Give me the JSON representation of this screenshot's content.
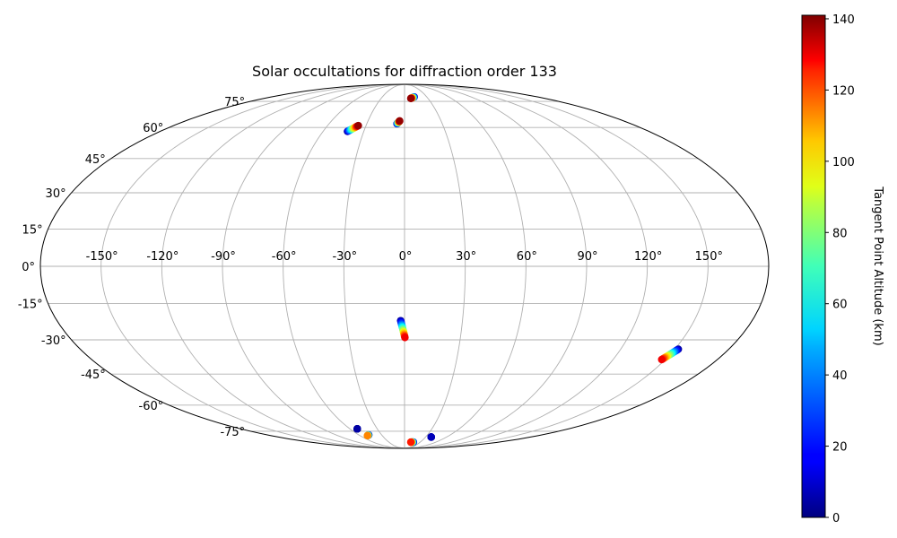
{
  "chart_data": {
    "type": "scatter",
    "projection": "mollweide",
    "title": "Solar occultations for diffraction order 133",
    "grid": true,
    "longitude_ticks": [
      "-150°",
      "-120°",
      "-90°",
      "-60°",
      "-30°",
      "0°",
      "30°",
      "60°",
      "90°",
      "120°",
      "150°"
    ],
    "latitude_ticks": [
      "75°",
      "60°",
      "45°",
      "30°",
      "15°",
      "0°",
      "-15°",
      "-30°",
      "-45°",
      "-60°",
      "-75°"
    ],
    "colorbar": {
      "label": "Tangent Point Altitude (km)",
      "range": [
        0,
        141
      ],
      "ticks": [
        "0",
        "20",
        "40",
        "60",
        "80",
        "100",
        "120",
        "140"
      ],
      "colormap": "jet",
      "placement": "right"
    },
    "tracks": [
      {
        "lon_start": 13,
        "lat_start": 78,
        "alt_start": 5,
        "lon_end": 8,
        "lat_end": 77,
        "alt_end": 138
      },
      {
        "lon_start": -42,
        "lat_start": 58,
        "alt_start": 5,
        "lon_end": -36,
        "lat_end": 61,
        "alt_end": 138
      },
      {
        "lon_start": -6,
        "lat_start": 62,
        "alt_start": 5,
        "lon_end": -4,
        "lat_end": 63.5,
        "alt_end": 138
      },
      {
        "lon_start": -2,
        "lat_start": -22,
        "alt_start": 5,
        "lon_end": 0.2,
        "lat_end": -29,
        "alt_end": 125
      },
      {
        "lon_start": 152,
        "lat_start": -34,
        "alt_start": 5,
        "lon_end": 148,
        "lat_end": -38.5,
        "alt_end": 125
      },
      {
        "lon_start": 17,
        "lat_start": -83,
        "alt_start": 5,
        "lon_end": 12,
        "lat_end": -83,
        "alt_end": 120
      },
      {
        "lon_start": -47,
        "lat_start": -77.5,
        "alt_start": 3,
        "lon_end": -50,
        "lat_end": -78,
        "alt_end": 105
      },
      {
        "lon_start": -52,
        "lat_start": -73.5,
        "alt_start": 3,
        "lon_end": -52,
        "lat_end": -73.5,
        "alt_end": 5
      },
      {
        "lon_start": 38,
        "lat_start": -79,
        "alt_start": 3,
        "lon_end": 38,
        "lat_end": -79,
        "alt_end": 8
      }
    ]
  }
}
